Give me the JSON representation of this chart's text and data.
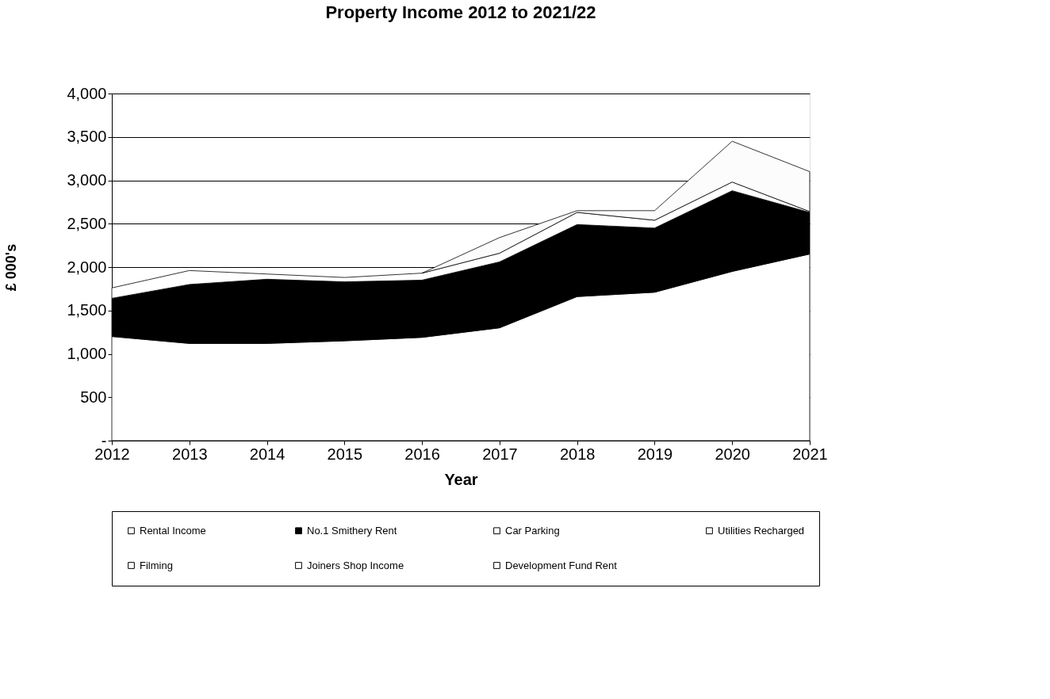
{
  "chart_data": {
    "type": "area",
    "title": "Property Income 2012 to 2021/22",
    "xlabel": "Year",
    "ylabel": "£ 000's",
    "x": [
      2012,
      2013,
      2014,
      2015,
      2016,
      2017,
      2018,
      2019,
      2020,
      2021
    ],
    "xlim": [
      2012,
      2021
    ],
    "xticks": [
      2012,
      2013,
      2014,
      2015,
      2016,
      2017,
      2018,
      2019,
      2020,
      2021
    ],
    "ylim": [
      0,
      4000
    ],
    "yticks": [
      {
        "value": 0,
        "label": "-"
      },
      {
        "value": 500,
        "label": "500"
      },
      {
        "value": 1000,
        "label": "1,000"
      },
      {
        "value": 1500,
        "label": "1,500"
      },
      {
        "value": 2000,
        "label": "2,000"
      },
      {
        "value": 2500,
        "label": "2,500"
      },
      {
        "value": 3000,
        "label": "3,000"
      },
      {
        "value": 3500,
        "label": "3,500"
      },
      {
        "value": 4000,
        "label": "4,000"
      }
    ],
    "stacked": true,
    "grid": "y",
    "legend": "bottom",
    "series": [
      {
        "name": "Rental Income",
        "color": "#ffffff",
        "values": [
          1200,
          1120,
          1120,
          1150,
          1190,
          1300,
          1660,
          1710,
          1950,
          2150
        ]
      },
      {
        "name": "No.1 Smithery Rent",
        "color": "#000000",
        "values": [
          440,
          680,
          740,
          680,
          660,
          760,
          830,
          740,
          930,
          480
        ]
      },
      {
        "name": "Car Parking",
        "color": "#ffffff",
        "values": [
          120,
          160,
          60,
          50,
          80,
          100,
          140,
          90,
          100,
          10
        ]
      },
      {
        "name": "Utilities Recharged",
        "color": "#fcfcfc",
        "values": [
          null,
          null,
          null,
          null,
          0,
          180,
          20,
          110,
          470,
          460
        ]
      },
      {
        "name": "Filming",
        "color": "#ffffff",
        "values": [
          null,
          null,
          null,
          null,
          null,
          null,
          null,
          null,
          null,
          null
        ]
      },
      {
        "name": "Joiners Shop Income",
        "color": "#ffffff",
        "values": [
          null,
          null,
          null,
          null,
          null,
          null,
          null,
          null,
          null,
          null
        ]
      },
      {
        "name": "Development Fund Rent",
        "color": "#ffffff",
        "values": [
          null,
          null,
          null,
          null,
          null,
          null,
          null,
          null,
          null,
          null
        ]
      }
    ]
  }
}
